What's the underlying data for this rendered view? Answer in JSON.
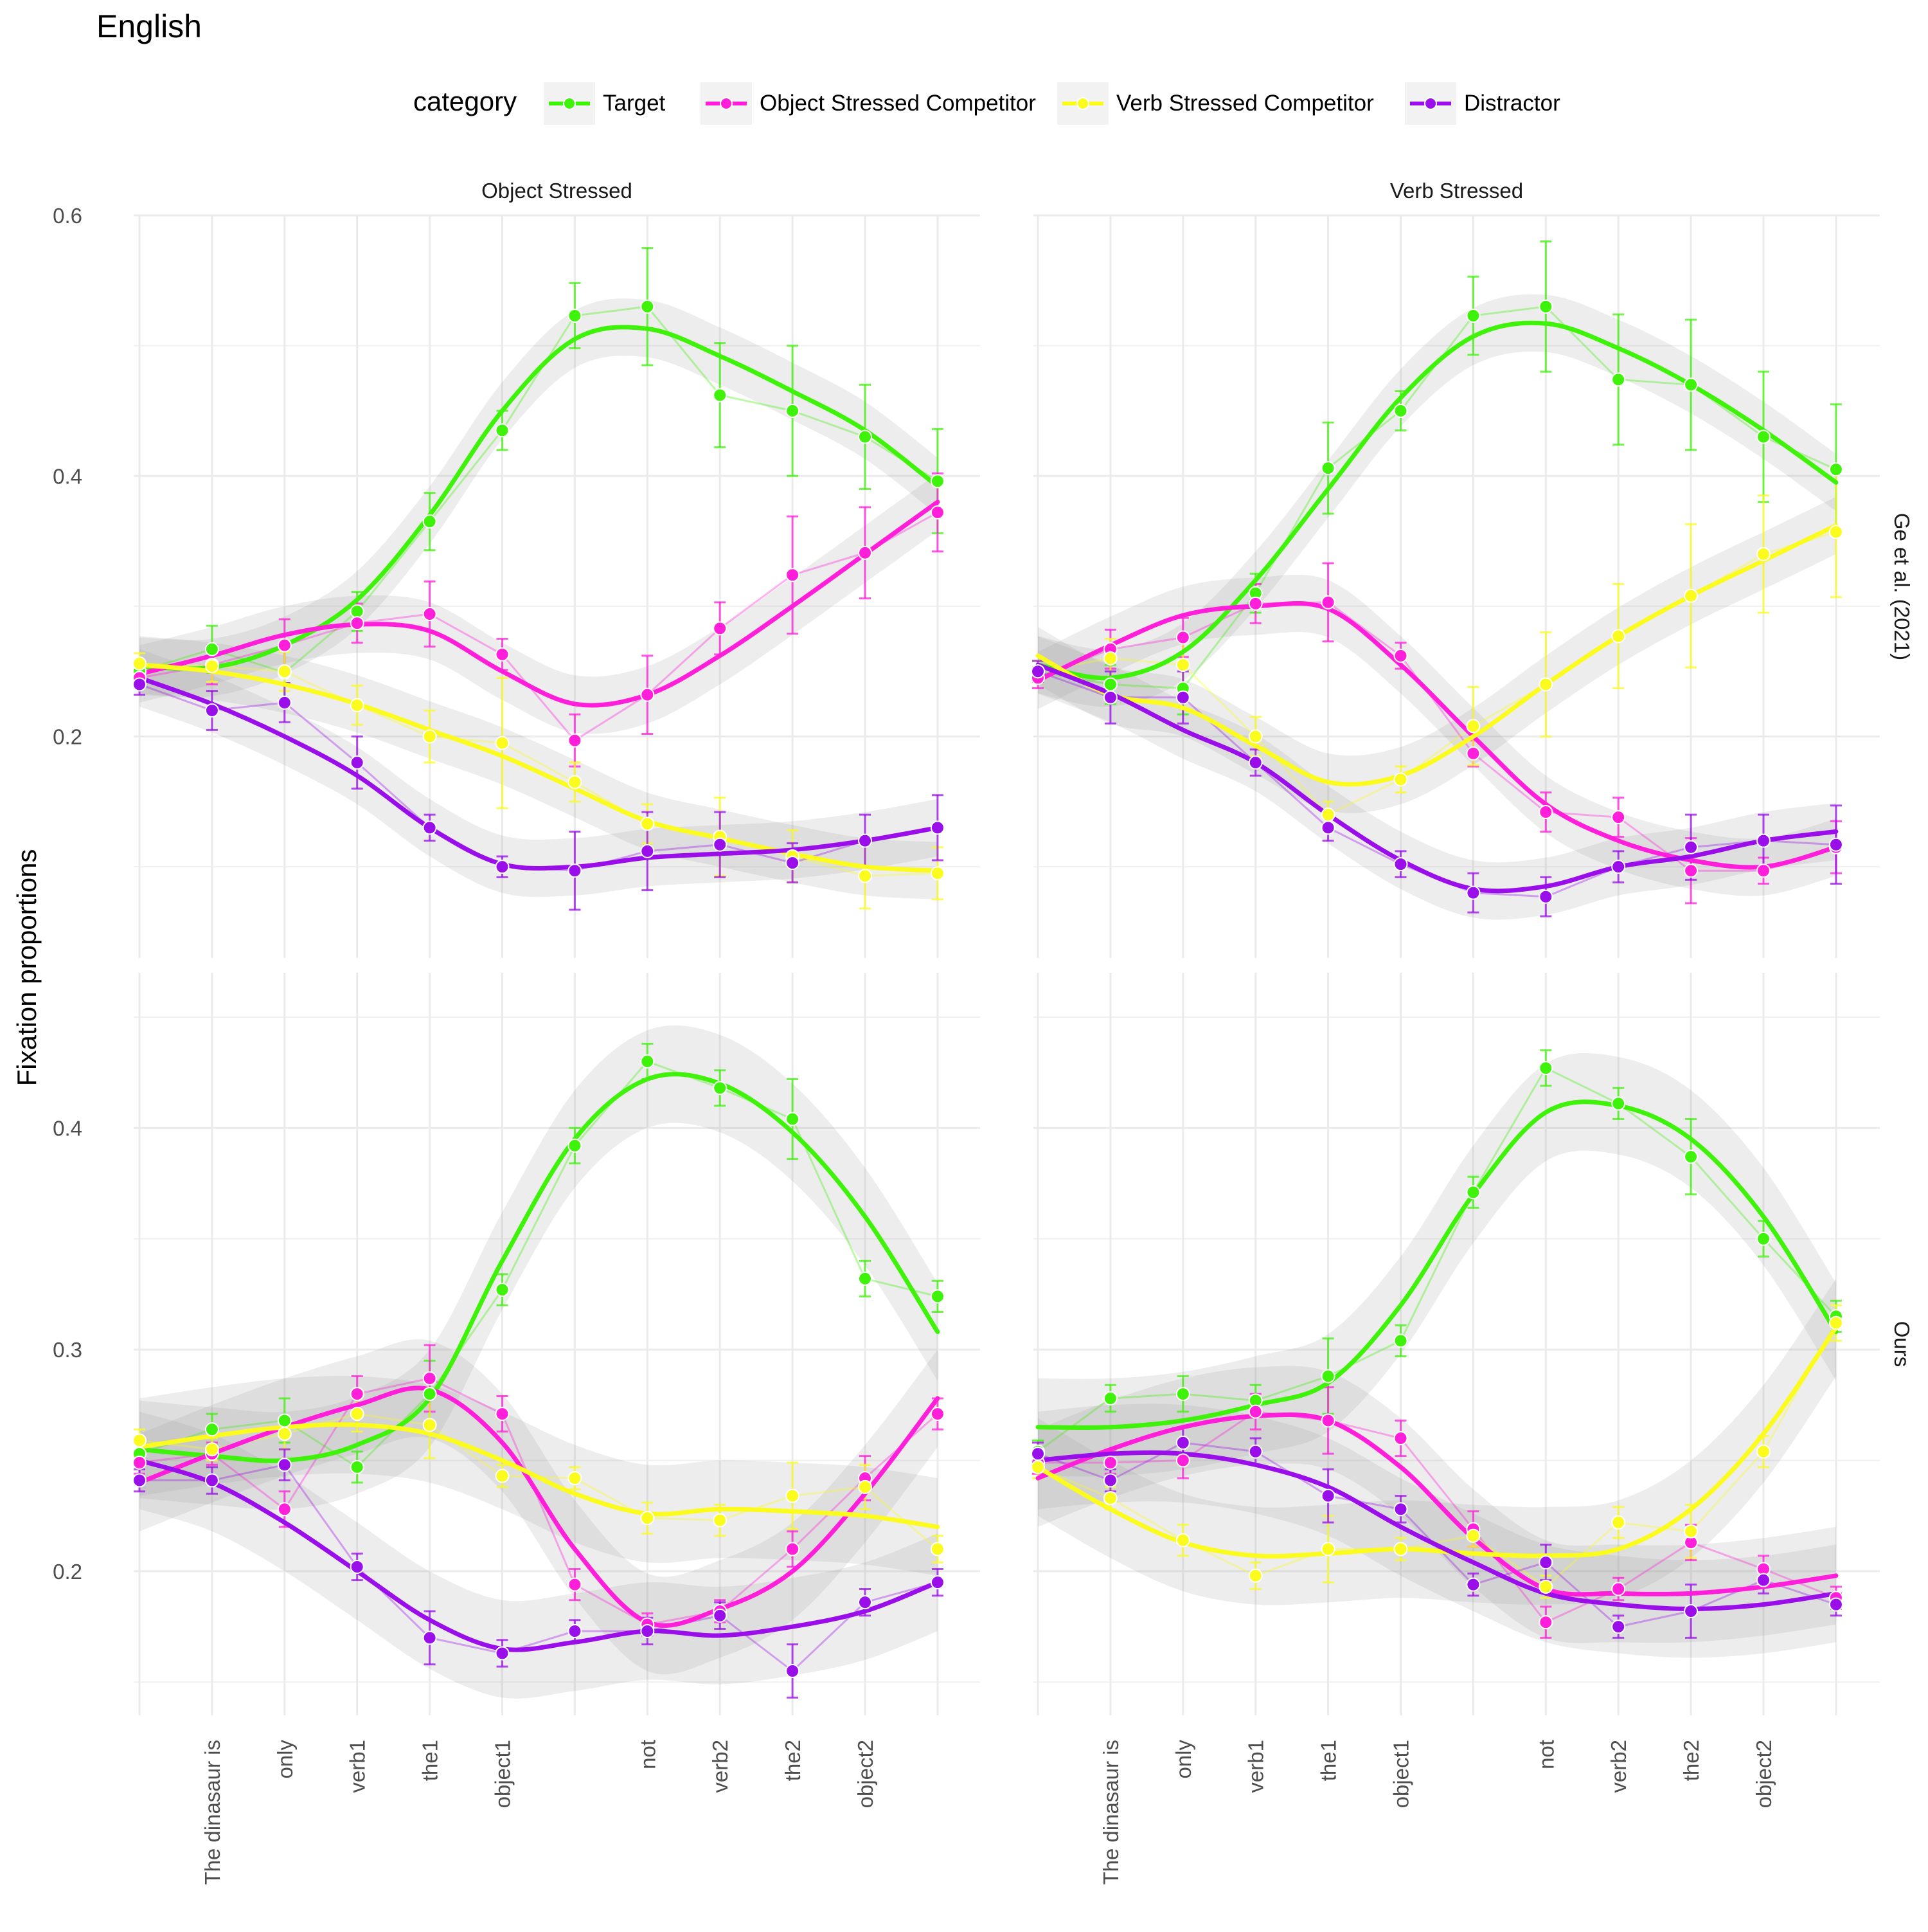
{
  "title": "English",
  "ylabel": "Fixation proportions",
  "legend": {
    "title": "category",
    "position": "top",
    "items": [
      "Target",
      "Object Stressed Competitor",
      "Verb Stressed Competitor",
      "Distractor"
    ]
  },
  "colors": {
    "Target": "#3ff20a",
    "Object Stressed Competitor": "#ff1ed9",
    "Verb Stressed Competitor": "#fbfb1e",
    "Distractor": "#9a0eea"
  },
  "facets": {
    "columns": [
      "Object Stressed",
      "Verb Stressed"
    ],
    "rows": [
      "Ge et al. (2021)",
      "Ours"
    ]
  },
  "x_tick_labels": [
    "",
    "The dinasaur is",
    "only",
    "verb1",
    "the1",
    "object1",
    "",
    "not",
    "verb2",
    "the2",
    "object2",
    ""
  ],
  "chart_data": {
    "type": "line",
    "grid": true,
    "smoothed_trend_with_confidence_band": true,
    "error_bars": true,
    "x_positions": 12,
    "panels": [
      {
        "row": "Ge et al. (2021)",
        "col": "Object Stressed",
        "ylim": [
          0.03,
          0.6
        ],
        "yticks": [
          0.2,
          0.4,
          0.6
        ],
        "series": [
          {
            "name": "Target",
            "values": [
              0.25,
              0.267,
              0.249,
              0.296,
              0.365,
              0.435,
              0.523,
              0.53,
              0.462,
              0.45,
              0.43,
              0.396
            ],
            "err": [
              0.008,
              0.018,
              0.02,
              0.015,
              0.022,
              0.015,
              0.025,
              0.045,
              0.04,
              0.05,
              0.04,
              0.04
            ],
            "smooth": [
              0.254,
              0.253,
              0.27,
              0.305,
              0.37,
              0.45,
              0.505,
              0.513,
              0.492,
              0.465,
              0.435,
              0.392
            ]
          },
          {
            "name": "Object Stressed Competitor",
            "values": [
              0.245,
              0.255,
              0.27,
              0.287,
              0.294,
              0.263,
              0.197,
              0.232,
              0.283,
              0.324,
              0.341,
              0.372
            ],
            "err": [
              0.008,
              0.015,
              0.02,
              0.015,
              0.025,
              0.012,
              0.02,
              0.03,
              0.02,
              0.045,
              0.035,
              0.03
            ],
            "smooth": [
              0.248,
              0.262,
              0.278,
              0.286,
              0.281,
              0.25,
              0.225,
              0.232,
              0.262,
              0.3,
              0.34,
              0.38
            ]
          },
          {
            "name": "Verb Stressed Competitor",
            "values": [
              0.256,
              0.254,
              0.25,
              0.224,
              0.2,
              0.195,
              0.165,
              0.133,
              0.123,
              0.108,
              0.093,
              0.095
            ],
            "err": [
              0.008,
              0.012,
              0.015,
              0.015,
              0.02,
              0.05,
              0.015,
              0.015,
              0.03,
              0.02,
              0.025,
              0.02
            ],
            "smooth": [
              0.255,
              0.25,
              0.24,
              0.225,
              0.205,
              0.185,
              0.16,
              0.135,
              0.122,
              0.11,
              0.1,
              0.097
            ]
          },
          {
            "name": "Distractor",
            "values": [
              0.24,
              0.22,
              0.226,
              0.18,
              0.13,
              0.1,
              0.097,
              0.112,
              0.117,
              0.103,
              0.12,
              0.13
            ],
            "err": [
              0.008,
              0.015,
              0.015,
              0.02,
              0.01,
              0.008,
              0.03,
              0.03,
              0.025,
              0.015,
              0.02,
              0.025
            ],
            "smooth": [
              0.245,
              0.225,
              0.2,
              0.17,
              0.13,
              0.102,
              0.1,
              0.107,
              0.11,
              0.113,
              0.12,
              0.13
            ]
          }
        ]
      },
      {
        "row": "Ge et al. (2021)",
        "col": "Verb Stressed",
        "ylim": [
          0.03,
          0.6
        ],
        "yticks": [
          0.2,
          0.4,
          0.6
        ],
        "series": [
          {
            "name": "Target",
            "values": [
              0.25,
              0.24,
              0.237,
              0.31,
              0.406,
              0.45,
              0.523,
              0.53,
              0.474,
              0.47,
              0.43,
              0.405
            ],
            "err": [
              0.008,
              0.015,
              0.02,
              0.015,
              0.035,
              0.015,
              0.03,
              0.05,
              0.05,
              0.05,
              0.05,
              0.05
            ],
            "smooth": [
              0.255,
              0.245,
              0.265,
              0.32,
              0.39,
              0.46,
              0.507,
              0.517,
              0.498,
              0.47,
              0.435,
              0.395
            ]
          },
          {
            "name": "Object Stressed Competitor",
            "values": [
              0.245,
              0.267,
              0.276,
              0.302,
              0.303,
              0.262,
              0.187,
              0.142,
              0.138,
              0.097,
              0.097,
              0.115
            ],
            "err": [
              0.008,
              0.015,
              0.015,
              0.015,
              0.03,
              0.01,
              0.01,
              0.015,
              0.015,
              0.025,
              0.01,
              0.02
            ],
            "smooth": [
              0.243,
              0.27,
              0.293,
              0.3,
              0.298,
              0.255,
              0.2,
              0.148,
              0.12,
              0.105,
              0.1,
              0.115
            ]
          },
          {
            "name": "Verb Stressed Competitor",
            "values": [
              0.25,
              0.26,
              0.255,
              0.2,
              0.14,
              0.167,
              0.208,
              0.24,
              0.277,
              0.308,
              0.34,
              0.357
            ],
            "err": [
              0.008,
              0.015,
              0.02,
              0.015,
              0.01,
              0.01,
              0.03,
              0.04,
              0.04,
              0.055,
              0.045,
              0.05
            ],
            "smooth": [
              0.262,
              0.232,
              0.222,
              0.193,
              0.165,
              0.17,
              0.2,
              0.24,
              0.277,
              0.308,
              0.335,
              0.362
            ]
          },
          {
            "name": "Distractor",
            "values": [
              0.25,
              0.23,
              0.23,
              0.18,
              0.13,
              0.102,
              0.08,
              0.077,
              0.1,
              0.115,
              0.12,
              0.117
            ],
            "err": [
              0.008,
              0.02,
              0.02,
              0.01,
              0.01,
              0.01,
              0.015,
              0.015,
              0.012,
              0.025,
              0.02,
              0.03
            ],
            "smooth": [
              0.255,
              0.233,
              0.205,
              0.18,
              0.14,
              0.105,
              0.083,
              0.085,
              0.1,
              0.108,
              0.12,
              0.127
            ]
          }
        ]
      },
      {
        "row": "Ours",
        "col": "Object Stressed",
        "ylim": [
          0.135,
          0.47
        ],
        "yticks": [
          0.2,
          0.3,
          0.4
        ],
        "series": [
          {
            "name": "Target",
            "values": [
              0.253,
              0.264,
              0.268,
              0.247,
              0.28,
              0.327,
              0.392,
              0.43,
              0.418,
              0.404,
              0.332,
              0.324
            ],
            "err": [
              0.005,
              0.007,
              0.01,
              0.007,
              0.015,
              0.007,
              0.008,
              0.008,
              0.008,
              0.018,
              0.008,
              0.007
            ],
            "smooth": [
              0.255,
              0.252,
              0.25,
              0.257,
              0.278,
              0.34,
              0.395,
              0.422,
              0.42,
              0.398,
              0.36,
              0.308
            ]
          },
          {
            "name": "Object Stressed Competitor",
            "values": [
              0.249,
              0.253,
              0.228,
              0.28,
              0.287,
              0.271,
              0.194,
              0.176,
              0.182,
              0.21,
              0.242,
              0.271
            ],
            "err": [
              0.005,
              0.005,
              0.008,
              0.008,
              0.015,
              0.008,
              0.007,
              0.005,
              0.005,
              0.008,
              0.01,
              0.007
            ],
            "smooth": [
              0.24,
              0.253,
              0.265,
              0.275,
              0.282,
              0.258,
              0.21,
              0.177,
              0.183,
              0.2,
              0.235,
              0.278
            ]
          },
          {
            "name": "Verb Stressed Competitor",
            "values": [
              0.259,
              0.255,
              0.262,
              0.271,
              0.266,
              0.243,
              0.242,
              0.224,
              0.223,
              0.234,
              0.238,
              0.21
            ],
            "err": [
              0.005,
              0.005,
              0.007,
              0.008,
              0.015,
              0.005,
              0.005,
              0.007,
              0.007,
              0.015,
              0.01,
              0.006
            ],
            "smooth": [
              0.256,
              0.261,
              0.265,
              0.266,
              0.262,
              0.25,
              0.235,
              0.226,
              0.228,
              0.227,
              0.225,
              0.22
            ]
          },
          {
            "name": "Distractor",
            "values": [
              0.241,
              0.241,
              0.248,
              0.202,
              0.17,
              0.163,
              0.173,
              0.173,
              0.18,
              0.155,
              0.186,
              0.195
            ],
            "err": [
              0.005,
              0.006,
              0.007,
              0.006,
              0.012,
              0.006,
              0.005,
              0.006,
              0.006,
              0.012,
              0.006,
              0.006
            ],
            "smooth": [
              0.25,
              0.24,
              0.222,
              0.2,
              0.178,
              0.165,
              0.168,
              0.173,
              0.171,
              0.175,
              0.182,
              0.195
            ]
          }
        ]
      },
      {
        "row": "Ours",
        "col": "Verb Stressed",
        "ylim": [
          0.135,
          0.47
        ],
        "yticks": [
          0.2,
          0.3,
          0.4
        ],
        "series": [
          {
            "name": "Target",
            "values": [
              0.254,
              0.278,
              0.28,
              0.277,
              0.288,
              0.304,
              0.371,
              0.427,
              0.411,
              0.387,
              0.35,
              0.315
            ],
            "err": [
              0.005,
              0.006,
              0.008,
              0.007,
              0.017,
              0.007,
              0.007,
              0.008,
              0.007,
              0.017,
              0.008,
              0.007
            ],
            "smooth": [
              0.265,
              0.265,
              0.268,
              0.275,
              0.285,
              0.32,
              0.37,
              0.407,
              0.41,
              0.395,
              0.36,
              0.308
            ]
          },
          {
            "name": "Object Stressed Competitor",
            "values": [
              0.249,
              0.249,
              0.25,
              0.272,
              0.268,
              0.26,
              0.219,
              0.177,
              0.192,
              0.213,
              0.201,
              0.188
            ],
            "err": [
              0.005,
              0.005,
              0.008,
              0.008,
              0.015,
              0.008,
              0.008,
              0.007,
              0.005,
              0.008,
              0.006,
              0.005
            ],
            "smooth": [
              0.242,
              0.255,
              0.265,
              0.27,
              0.268,
              0.247,
              0.215,
              0.192,
              0.19,
              0.19,
              0.193,
              0.198
            ]
          },
          {
            "name": "Verb Stressed Competitor",
            "values": [
              0.247,
              0.233,
              0.214,
              0.198,
              0.21,
              0.21,
              0.216,
              0.193,
              0.222,
              0.218,
              0.254,
              0.312
            ],
            "err": [
              0.005,
              0.005,
              0.007,
              0.006,
              0.015,
              0.005,
              0.005,
              0.005,
              0.007,
              0.012,
              0.007,
              0.008
            ],
            "smooth": [
              0.247,
              0.228,
              0.213,
              0.207,
              0.208,
              0.21,
              0.208,
              0.207,
              0.21,
              0.228,
              0.262,
              0.31
            ]
          },
          {
            "name": "Distractor",
            "values": [
              0.253,
              0.241,
              0.258,
              0.254,
              0.234,
              0.228,
              0.194,
              0.204,
              0.175,
              0.182,
              0.196,
              0.185
            ],
            "err": [
              0.005,
              0.005,
              0.007,
              0.006,
              0.012,
              0.006,
              0.005,
              0.008,
              0.005,
              0.012,
              0.006,
              0.005
            ],
            "smooth": [
              0.25,
              0.253,
              0.253,
              0.248,
              0.238,
              0.22,
              0.204,
              0.19,
              0.185,
              0.183,
              0.185,
              0.19
            ]
          }
        ]
      }
    ]
  }
}
